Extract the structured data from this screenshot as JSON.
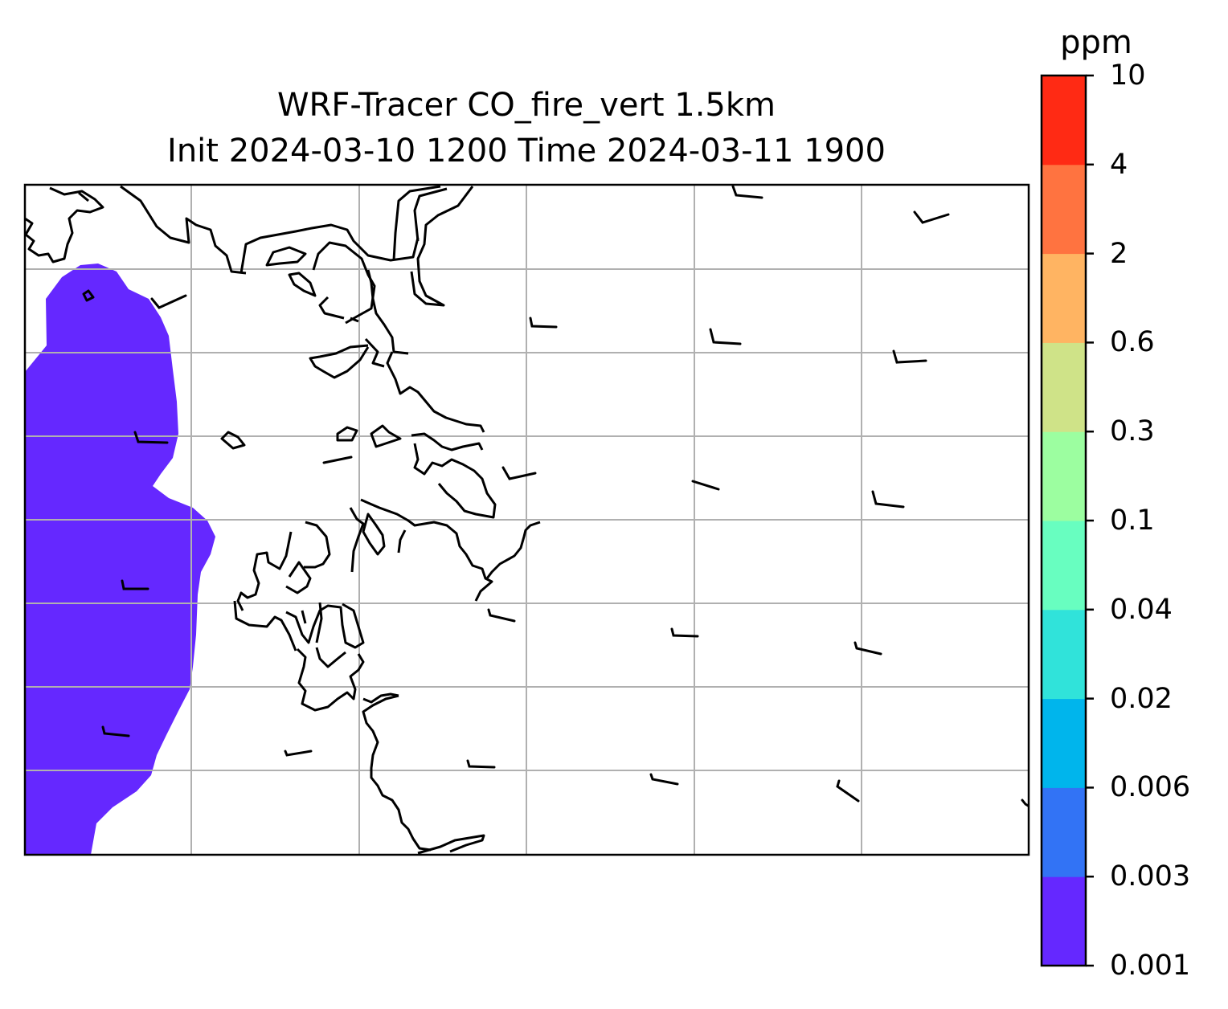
{
  "title": {
    "line1": "WRF-Tracer CO_fire_vert 1.5km",
    "line2": "Init 2024-03-10 1200 Time 2024-03-11 1900"
  },
  "colorbar": {
    "unit": "ppm",
    "levels": [
      "0.001",
      "0.003",
      "0.006",
      "0.02",
      "0.04",
      "0.1",
      "0.3",
      "0.6",
      "2",
      "4",
      "10"
    ],
    "colors": [
      "#6528ff",
      "#3273f5",
      "#00b5ec",
      "#30e3da",
      "#68fec0",
      "#9cfea0",
      "#cfe388",
      "#ffb462",
      "#ff7340",
      "#ff2a14"
    ]
  },
  "map": {
    "plume_color": "#6528ff",
    "plume_level": "0.001-0.003",
    "grid_color": "#b0b0b0",
    "coastline_color": "#000000",
    "wind_barbs": true
  }
}
